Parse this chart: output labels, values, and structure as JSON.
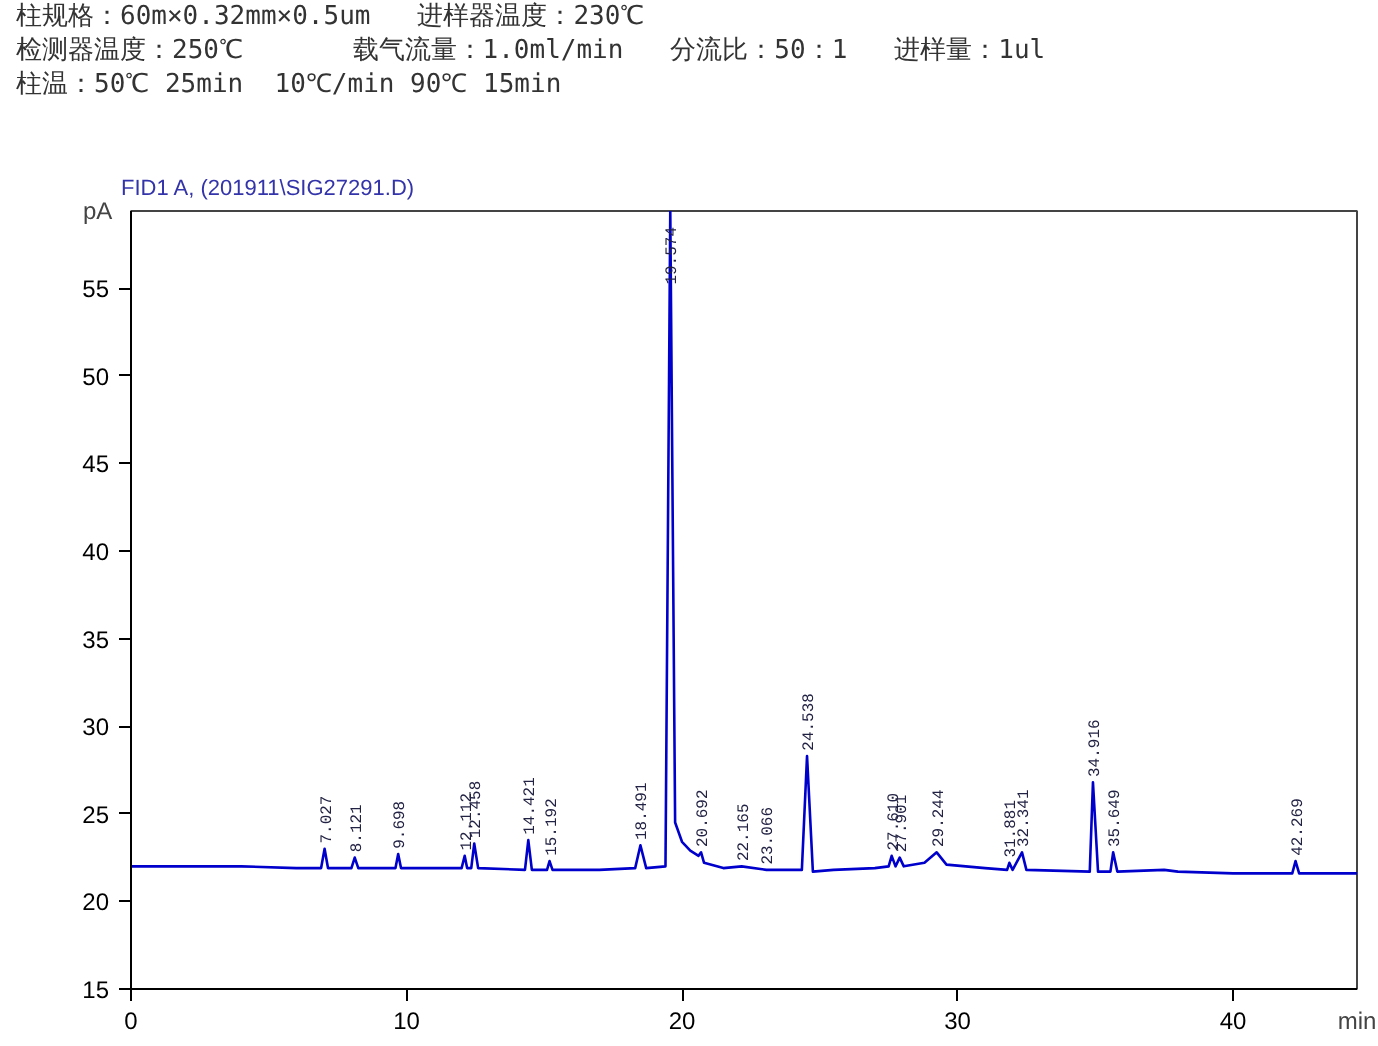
{
  "chart_data": {
    "type": "line",
    "title": "FID1 A, (201911\\SIG27291.D)",
    "xlabel": "min",
    "ylabel": "pA",
    "annotations": [
      "柱规格：60m×0.32mm×0.5um   进样器温度：230℃",
      "检测器温度：250℃       载气流量：1.0ml/min   分流比：50：1   进样量：1ul",
      "柱温：50℃ 25min  10℃/min 90℃ 15min",
      {
        "text": "7.027",
        "x": 7.027,
        "y": 23.0
      },
      {
        "text": "8.121",
        "x": 8.121,
        "y": 22.5
      },
      {
        "text": "9.698",
        "x": 9.698,
        "y": 22.7
      },
      {
        "text": "12.112",
        "x": 12.112,
        "y": 22.6
      },
      {
        "text": "12.458",
        "x": 12.458,
        "y": 23.3
      },
      {
        "text": "14.421",
        "x": 14.421,
        "y": 23.5
      },
      {
        "text": "15.192",
        "x": 15.192,
        "y": 22.3
      },
      {
        "text": "18.491",
        "x": 18.491,
        "y": 23.2
      },
      {
        "text": "19.574",
        "x": 19.574,
        "y": 59.4
      },
      {
        "text": "20.692",
        "x": 20.692,
        "y": 22.8
      },
      {
        "text": "22.165",
        "x": 22.165,
        "y": 22.0
      },
      {
        "text": "23.066",
        "x": 23.066,
        "y": 21.8
      },
      {
        "text": "24.538",
        "x": 24.538,
        "y": 28.3
      },
      {
        "text": "27.610",
        "x": 27.61,
        "y": 22.6
      },
      {
        "text": "27.901",
        "x": 27.901,
        "y": 22.5
      },
      {
        "text": "29.244",
        "x": 29.244,
        "y": 22.8
      },
      {
        "text": "31.881",
        "x": 31.881,
        "y": 22.2
      },
      {
        "text": "32.341",
        "x": 32.341,
        "y": 22.8
      },
      {
        "text": "34.916",
        "x": 34.916,
        "y": 26.8
      },
      {
        "text": "35.649",
        "x": 35.649,
        "y": 22.8
      },
      {
        "text": "42.269",
        "x": 42.269,
        "y": 22.3
      }
    ],
    "xlim": [
      0,
      44.5
    ],
    "ylim": [
      15,
      59.4
    ],
    "xticks": [
      0,
      10,
      20,
      30,
      40
    ],
    "yticks": [
      15,
      20,
      25,
      30,
      35,
      40,
      45,
      50,
      55
    ],
    "grid": false,
    "marker": "none",
    "line_style": "solid",
    "series": [
      {
        "color": "#0000cc",
        "x": [
          0,
          2,
          4,
          6,
          6.9,
          7.027,
          7.15,
          8.0,
          8.121,
          8.25,
          9.6,
          9.698,
          9.8,
          12.0,
          12.112,
          12.2,
          12.35,
          12.458,
          12.6,
          14.3,
          14.421,
          14.55,
          15.1,
          15.192,
          15.3,
          17,
          18.3,
          18.491,
          18.7,
          19.4,
          19.574,
          19.75,
          20.0,
          20.3,
          20.6,
          20.692,
          20.8,
          21.5,
          22.165,
          23.066,
          24.35,
          24.538,
          24.75,
          25.5,
          27.0,
          27.5,
          27.61,
          27.75,
          27.901,
          28.05,
          28.8,
          29.244,
          29.6,
          31,
          31.8,
          31.881,
          32.0,
          32.341,
          32.5,
          34.8,
          34.916,
          35.1,
          35.55,
          35.649,
          35.8,
          37.5,
          38,
          40,
          42.15,
          42.269,
          42.4,
          44.5
        ],
        "values": [
          22.0,
          22.0,
          22.0,
          21.9,
          21.9,
          23.0,
          21.9,
          21.9,
          22.5,
          21.9,
          21.9,
          22.7,
          21.9,
          21.9,
          22.6,
          21.9,
          21.9,
          23.3,
          21.9,
          21.8,
          23.5,
          21.8,
          21.8,
          22.3,
          21.8,
          21.8,
          21.9,
          23.2,
          21.9,
          22.0,
          59.4,
          24.5,
          23.4,
          22.9,
          22.6,
          22.8,
          22.2,
          21.9,
          22.0,
          21.8,
          21.8,
          28.3,
          21.7,
          21.8,
          21.9,
          22.0,
          22.6,
          22.0,
          22.5,
          22.0,
          22.2,
          22.8,
          22.1,
          21.9,
          21.8,
          22.2,
          21.8,
          22.8,
          21.8,
          21.7,
          26.8,
          21.7,
          21.7,
          22.8,
          21.7,
          21.8,
          21.7,
          21.6,
          21.6,
          22.3,
          21.6,
          21.6
        ]
      }
    ]
  }
}
